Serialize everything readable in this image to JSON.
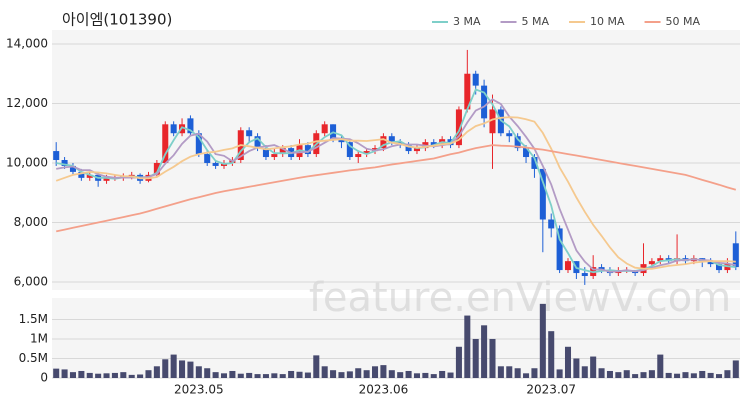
{
  "chart_data": {
    "type": "candlestick",
    "title": "아이엠(101390)",
    "watermark": "feature.enViewV.com",
    "up_color": "#e8262b",
    "down_color": "#1d5fd6",
    "categories": [
      null,
      null,
      null,
      null,
      null,
      null,
      null,
      null,
      null,
      null,
      null,
      null,
      null,
      null,
      null,
      null,
      null,
      "2023.05",
      null,
      null,
      null,
      null,
      null,
      null,
      null,
      null,
      null,
      null,
      null,
      null,
      null,
      null,
      null,
      null,
      null,
      null,
      null,
      null,
      null,
      "2023.06",
      null,
      null,
      null,
      null,
      null,
      null,
      null,
      null,
      null,
      null,
      null,
      null,
      null,
      null,
      null,
      null,
      null,
      null,
      null,
      "2023.07",
      null,
      null,
      null,
      null,
      null,
      null,
      null,
      null,
      null,
      null,
      null,
      null,
      null,
      null,
      null,
      null,
      null,
      null,
      null,
      null,
      null,
      null
    ],
    "open": [
      10400,
      10100,
      9900,
      9700,
      9500,
      9600,
      9400,
      9500,
      9500,
      9550,
      9600,
      9400,
      9600,
      10000,
      11300,
      11000,
      11500,
      11000,
      10300,
      10000,
      9900,
      10000,
      10100,
      11100,
      10900,
      10500,
      10200,
      10300,
      10500,
      10200,
      10600,
      10300,
      11000,
      11300,
      10800,
      10700,
      10200,
      10300,
      10400,
      10500,
      10900,
      10700,
      10600,
      10400,
      10500,
      10700,
      10600,
      10800,
      10600,
      11800,
      13000,
      12600,
      11000,
      11800,
      11000,
      10900,
      10500,
      10200,
      9800,
      8100,
      7800,
      6400,
      6700,
      6300,
      6200,
      6500,
      6400,
      6300,
      6400,
      6400,
      6300,
      6600,
      6700,
      6800,
      6700,
      6800,
      6700,
      6800,
      6700,
      6600,
      6400,
      7300
    ],
    "high": [
      10700,
      10200,
      10000,
      9800,
      9700,
      9700,
      9600,
      9600,
      9650,
      9700,
      9650,
      9700,
      10100,
      11400,
      11400,
      11500,
      11600,
      11100,
      10400,
      10100,
      10100,
      10200,
      11200,
      11200,
      11000,
      10600,
      10500,
      10600,
      10600,
      10800,
      10700,
      11100,
      11400,
      11300,
      10900,
      10800,
      10400,
      10500,
      10600,
      11000,
      11000,
      10800,
      10700,
      10600,
      10800,
      10800,
      10900,
      10900,
      11900,
      13800,
      13100,
      12800,
      12300,
      11900,
      11100,
      11000,
      10600,
      10300,
      9800,
      8300,
      7900,
      6800,
      6700,
      6500,
      6900,
      6600,
      6500,
      6500,
      6500,
      6400,
      7300,
      6800,
      6900,
      6900,
      7600,
      6900,
      6900,
      6800,
      6800,
      6700,
      6800,
      7700
    ],
    "low": [
      9900,
      9800,
      9600,
      9400,
      9400,
      9200,
      9300,
      9400,
      9400,
      9450,
      9300,
      9350,
      9550,
      9950,
      10900,
      10900,
      10900,
      10200,
      9900,
      9800,
      9800,
      9900,
      10000,
      10700,
      10400,
      10100,
      10100,
      10200,
      10100,
      10100,
      10200,
      10200,
      10900,
      10700,
      10500,
      10100,
      10000,
      10200,
      10300,
      10400,
      10600,
      10500,
      10300,
      10300,
      10400,
      10500,
      10500,
      10500,
      10500,
      11700,
      12300,
      11200,
      9800,
      10900,
      10700,
      10400,
      10000,
      9500,
      7000,
      7500,
      6300,
      6300,
      6100,
      5900,
      6100,
      6300,
      6200,
      6200,
      6300,
      6200,
      6200,
      6500,
      6600,
      6600,
      6600,
      6600,
      6600,
      6500,
      6500,
      6300,
      6300,
      6400
    ],
    "close": [
      10100,
      9900,
      9700,
      9500,
      9600,
      9400,
      9500,
      9500,
      9550,
      9600,
      9400,
      9600,
      10000,
      11300,
      11000,
      11300,
      11000,
      10300,
      10000,
      9900,
      10000,
      10100,
      11100,
      10900,
      10500,
      10200,
      10300,
      10500,
      10200,
      10600,
      10300,
      11000,
      11300,
      10800,
      10700,
      10200,
      10300,
      10400,
      10500,
      10900,
      10700,
      10600,
      10400,
      10500,
      10700,
      10600,
      10800,
      10600,
      11800,
      13000,
      12600,
      11500,
      11800,
      11000,
      10900,
      10500,
      10200,
      9800,
      8100,
      7800,
      6400,
      6700,
      6300,
      6200,
      6500,
      6400,
      6300,
      6400,
      6400,
      6300,
      6600,
      6700,
      6800,
      6700,
      6800,
      6700,
      6800,
      6700,
      6600,
      6400,
      6600,
      6500
    ],
    "series": [
      {
        "name": "3 MA",
        "color": "#7ecfc9",
        "values": [
          10000,
          9950,
          9900,
          9700,
          9600,
          9500,
          9500,
          9470,
          9520,
          9550,
          9520,
          9530,
          9670,
          10300,
          10770,
          11200,
          11100,
          10870,
          10430,
          10070,
          9970,
          10000,
          10400,
          10700,
          10830,
          10530,
          10330,
          10330,
          10330,
          10430,
          10370,
          10630,
          10870,
          11030,
          10930,
          10570,
          10400,
          10300,
          10400,
          10600,
          10700,
          10730,
          10570,
          10500,
          10530,
          10600,
          10700,
          10670,
          11070,
          11800,
          12470,
          12370,
          11970,
          11430,
          11230,
          10800,
          10530,
          10170,
          9370,
          8570,
          7430,
          6970,
          6470,
          6400,
          6330,
          6370,
          6400,
          6370,
          6370,
          6370,
          6430,
          6530,
          6700,
          6730,
          6770,
          6730,
          6770,
          6730,
          6700,
          6570,
          6530,
          6500
        ]
      },
      {
        "name": "5 MA",
        "color": "#b39bc5",
        "values": [
          9800,
          9850,
          9880,
          9760,
          9760,
          9620,
          9540,
          9500,
          9510,
          9510,
          9510,
          9530,
          9630,
          9980,
          10260,
          10640,
          10920,
          10980,
          10720,
          10300,
          10240,
          10060,
          10220,
          10400,
          10520,
          10560,
          10600,
          10480,
          10340,
          10360,
          10380,
          10520,
          10680,
          10840,
          10820,
          10800,
          10660,
          10480,
          10420,
          10460,
          10560,
          10620,
          10620,
          10620,
          10580,
          10560,
          10600,
          10640,
          10900,
          11360,
          11760,
          11900,
          12140,
          11980,
          11560,
          11240,
          10880,
          10480,
          9900,
          9280,
          8460,
          7760,
          7060,
          6680,
          6420,
          6420,
          6340,
          6360,
          6400,
          6360,
          6400,
          6480,
          6560,
          6620,
          6720,
          6740,
          6760,
          6740,
          6720,
          6640,
          6620,
          6560
        ]
      },
      {
        "name": "10 MA",
        "color": "#f5c98f",
        "values": [
          9400,
          9500,
          9600,
          9650,
          9700,
          9680,
          9650,
          9600,
          9560,
          9550,
          9480,
          9480,
          9530,
          9710,
          9870,
          10060,
          10210,
          10300,
          10350,
          10380,
          10440,
          10490,
          10600,
          10560,
          10510,
          10460,
          10490,
          10530,
          10560,
          10620,
          10650,
          10730,
          10750,
          10780,
          10800,
          10750,
          10750,
          10740,
          10770,
          10800,
          10680,
          10640,
          10550,
          10520,
          10540,
          10580,
          10630,
          10650,
          10780,
          11050,
          11240,
          11330,
          11460,
          11520,
          11540,
          11530,
          11470,
          11390,
          11010,
          10480,
          9850,
          9370,
          8840,
          8360,
          7920,
          7550,
          7160,
          6830,
          6620,
          6480,
          6450,
          6440,
          6490,
          6540,
          6570,
          6600,
          6650,
          6680,
          6700,
          6700,
          6700,
          6680
        ]
      },
      {
        "name": "50 MA",
        "color": "#f4a08a",
        "values": [
          7700,
          7760,
          7820,
          7880,
          7940,
          8000,
          8060,
          8120,
          8180,
          8240,
          8300,
          8380,
          8460,
          8540,
          8620,
          8700,
          8780,
          8850,
          8920,
          8990,
          9050,
          9100,
          9150,
          9200,
          9250,
          9300,
          9350,
          9400,
          9450,
          9500,
          9550,
          9590,
          9630,
          9670,
          9710,
          9750,
          9780,
          9820,
          9850,
          9900,
          9950,
          9990,
          10030,
          10070,
          10110,
          10150,
          10220,
          10290,
          10350,
          10430,
          10500,
          10550,
          10600,
          10580,
          10570,
          10550,
          10520,
          10480,
          10450,
          10400,
          10350,
          10300,
          10250,
          10200,
          10150,
          10100,
          10050,
          10000,
          9950,
          9900,
          9850,
          9800,
          9750,
          9700,
          9650,
          9600,
          9520,
          9430,
          9350,
          9270,
          9180,
          9100
        ]
      }
    ],
    "ylim": [
      5730,
      14470
    ],
    "yticks": [
      {
        "value": 6000,
        "label": "6,000"
      },
      {
        "value": 8000,
        "label": "8,000"
      },
      {
        "value": 10000,
        "label": "10,000"
      },
      {
        "value": 12000,
        "label": "12,000"
      },
      {
        "value": 14000,
        "label": "14,000"
      }
    ],
    "grid": true,
    "legend": "top-right",
    "volume": {
      "color": "#474a6e",
      "values": [
        240000,
        220000,
        150000,
        180000,
        130000,
        110000,
        120000,
        130000,
        150000,
        80000,
        90000,
        200000,
        300000,
        480000,
        600000,
        450000,
        420000,
        300000,
        250000,
        150000,
        120000,
        180000,
        110000,
        130000,
        100000,
        100000,
        120000,
        100000,
        180000,
        160000,
        140000,
        580000,
        300000,
        200000,
        150000,
        170000,
        250000,
        200000,
        300000,
        330000,
        200000,
        150000,
        180000,
        120000,
        130000,
        100000,
        180000,
        140000,
        800000,
        1600000,
        1000000,
        1350000,
        1000000,
        300000,
        300000,
        250000,
        120000,
        250000,
        1900000,
        1200000,
        220000,
        800000,
        500000,
        300000,
        550000,
        250000,
        180000,
        150000,
        200000,
        100000,
        150000,
        200000,
        600000,
        130000,
        110000,
        150000,
        120000,
        180000,
        130000,
        100000,
        200000,
        450000
      ],
      "ylim": [
        0,
        2050000
      ],
      "yticks": [
        0,
        {
          "value": 500000,
          "label": "0.5M"
        },
        {
          "value": 1000000,
          "label": "1M"
        },
        {
          "value": 1500000,
          "label": "1.5M"
        }
      ]
    }
  }
}
